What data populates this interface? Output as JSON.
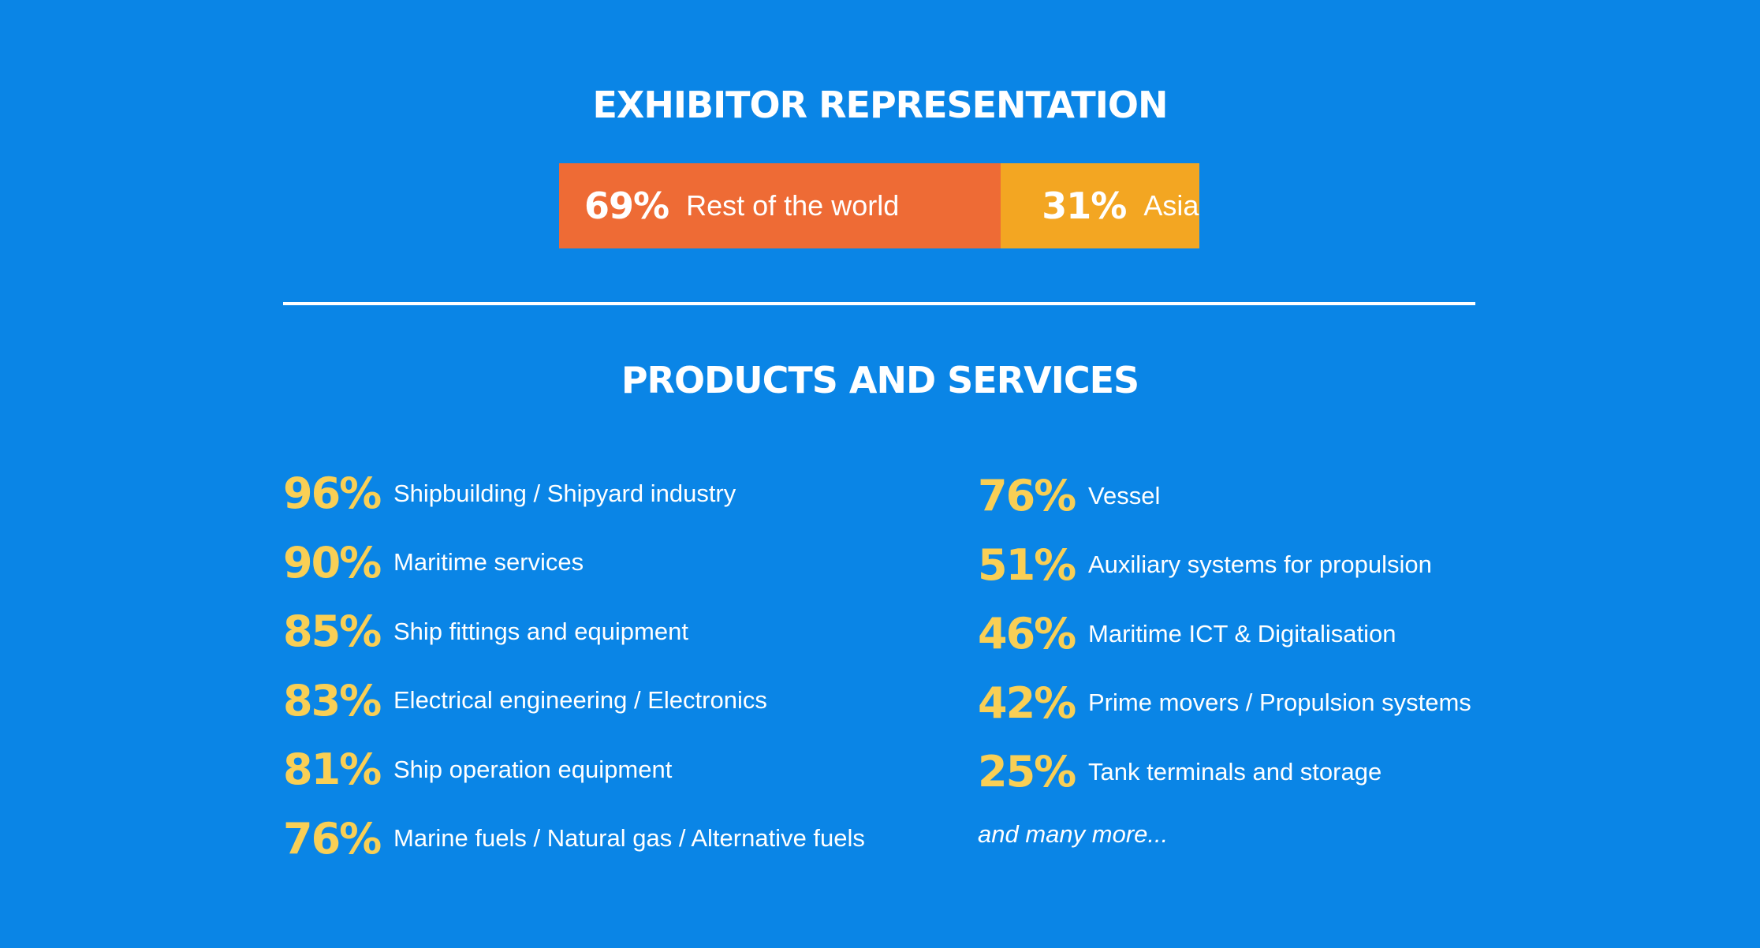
{
  "colors": {
    "background": "#0a85e6",
    "segment_rest": "#ee6b35",
    "segment_asia": "#f3a622",
    "percent_text": "#f9cf55",
    "text": "#ffffff"
  },
  "chart_data": [
    {
      "type": "bar",
      "orientation": "horizontal",
      "stacked": true,
      "title": "EXHIBITOR REPRESENTATION",
      "categories": [
        "Rest of the world",
        "Asia"
      ],
      "values": [
        69,
        31
      ],
      "unit": "%",
      "labels": {
        "rest_pct": "69%",
        "rest_name": "Rest of the world",
        "asia_pct": "31%",
        "asia_name": "Asia"
      }
    },
    {
      "type": "table",
      "title": "PRODUCTS AND SERVICES",
      "columns": [
        [
          {
            "value": 96,
            "pct": "96%",
            "label": "Shipbuilding / Shipyard industry"
          },
          {
            "value": 90,
            "pct": "90%",
            "label": "Maritime services"
          },
          {
            "value": 85,
            "pct": "85%",
            "label": "Ship fittings and equipment"
          },
          {
            "value": 83,
            "pct": "83%",
            "label": "Electrical engineering / Electronics"
          },
          {
            "value": 81,
            "pct": "81%",
            "label": "Ship operation equipment"
          },
          {
            "value": 76,
            "pct": "76%",
            "label": "Marine fuels / Natural gas / Alternative fuels"
          }
        ],
        [
          {
            "value": 76,
            "pct": "76%",
            "label": "Vessel"
          },
          {
            "value": 51,
            "pct": "51%",
            "label": "Auxiliary systems for propulsion"
          },
          {
            "value": 46,
            "pct": "46%",
            "label": "Maritime ICT & Digitalisation"
          },
          {
            "value": 42,
            "pct": "42%",
            "label": "Prime movers / Propulsion systems"
          },
          {
            "value": 25,
            "pct": "25%",
            "label": "Tank terminals and storage"
          }
        ]
      ],
      "footnote": "and many more..."
    }
  ]
}
